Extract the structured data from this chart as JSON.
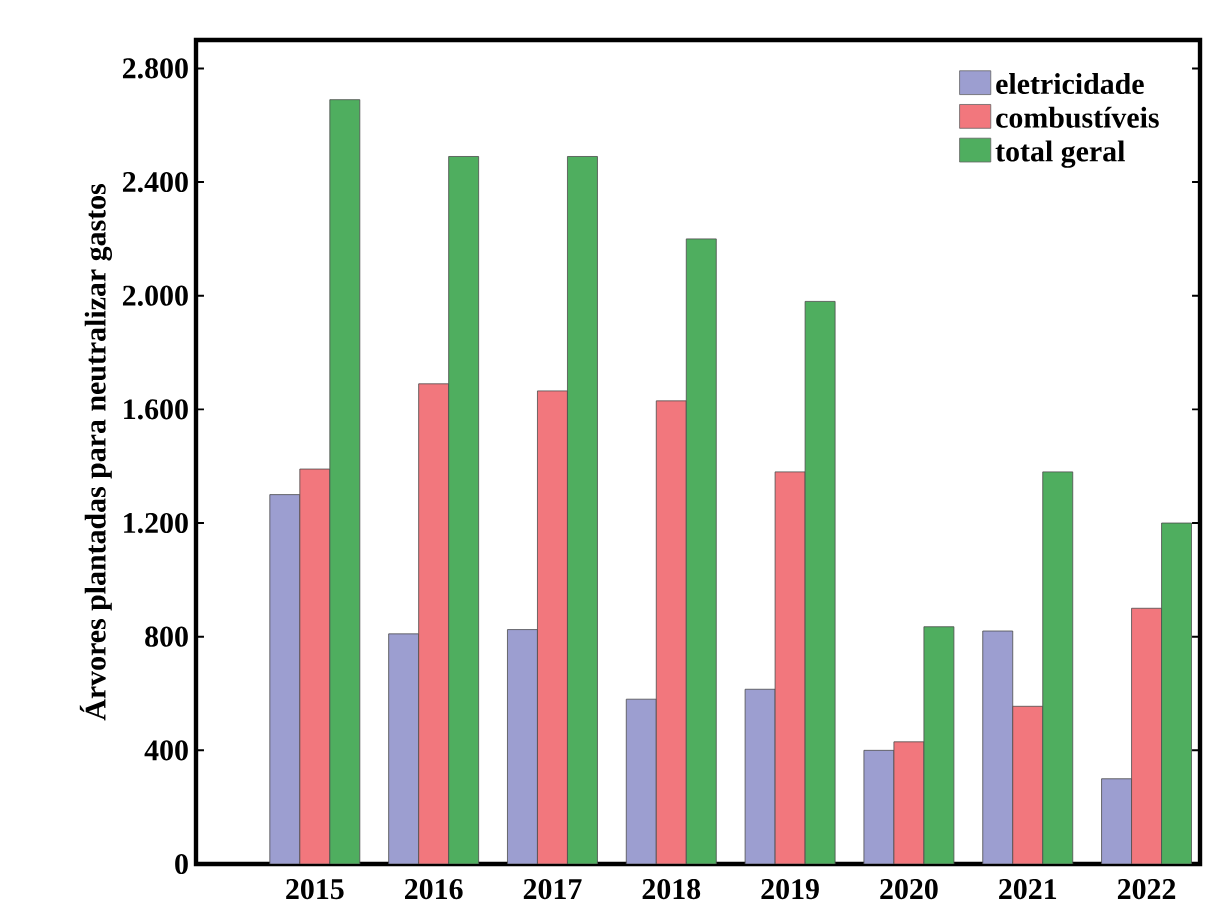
{
  "chart_data": {
    "type": "bar",
    "ylabel": "Árvores plantadas para neutralizar gastos",
    "categories": [
      "2015",
      "2016",
      "2017",
      "2018",
      "2019",
      "2020",
      "2021",
      "2022"
    ],
    "series": [
      {
        "name": "eletricidade",
        "color": "#9c9ed0",
        "values": [
          1300,
          810,
          825,
          580,
          615,
          400,
          820,
          300
        ]
      },
      {
        "name": "combustíveis",
        "color": "#f2777d",
        "values": [
          1390,
          1690,
          1665,
          1630,
          1380,
          430,
          555,
          900
        ]
      },
      {
        "name": "total geral",
        "color": "#4fae5f",
        "values": [
          2690,
          2490,
          2490,
          2200,
          1980,
          835,
          1380,
          1200
        ]
      }
    ],
    "ylim": [
      0,
      2900
    ],
    "yticks": [
      {
        "value": 0,
        "label": "0"
      },
      {
        "value": 400,
        "label": "400"
      },
      {
        "value": 800,
        "label": "800"
      },
      {
        "value": 1200,
        "label": "1.200"
      },
      {
        "value": 1600,
        "label": "1.600"
      },
      {
        "value": 2000,
        "label": "2.000"
      },
      {
        "value": 2400,
        "label": "2.400"
      },
      {
        "value": 2800,
        "label": "2.800"
      }
    ],
    "legend": "top right",
    "grid": false
  }
}
